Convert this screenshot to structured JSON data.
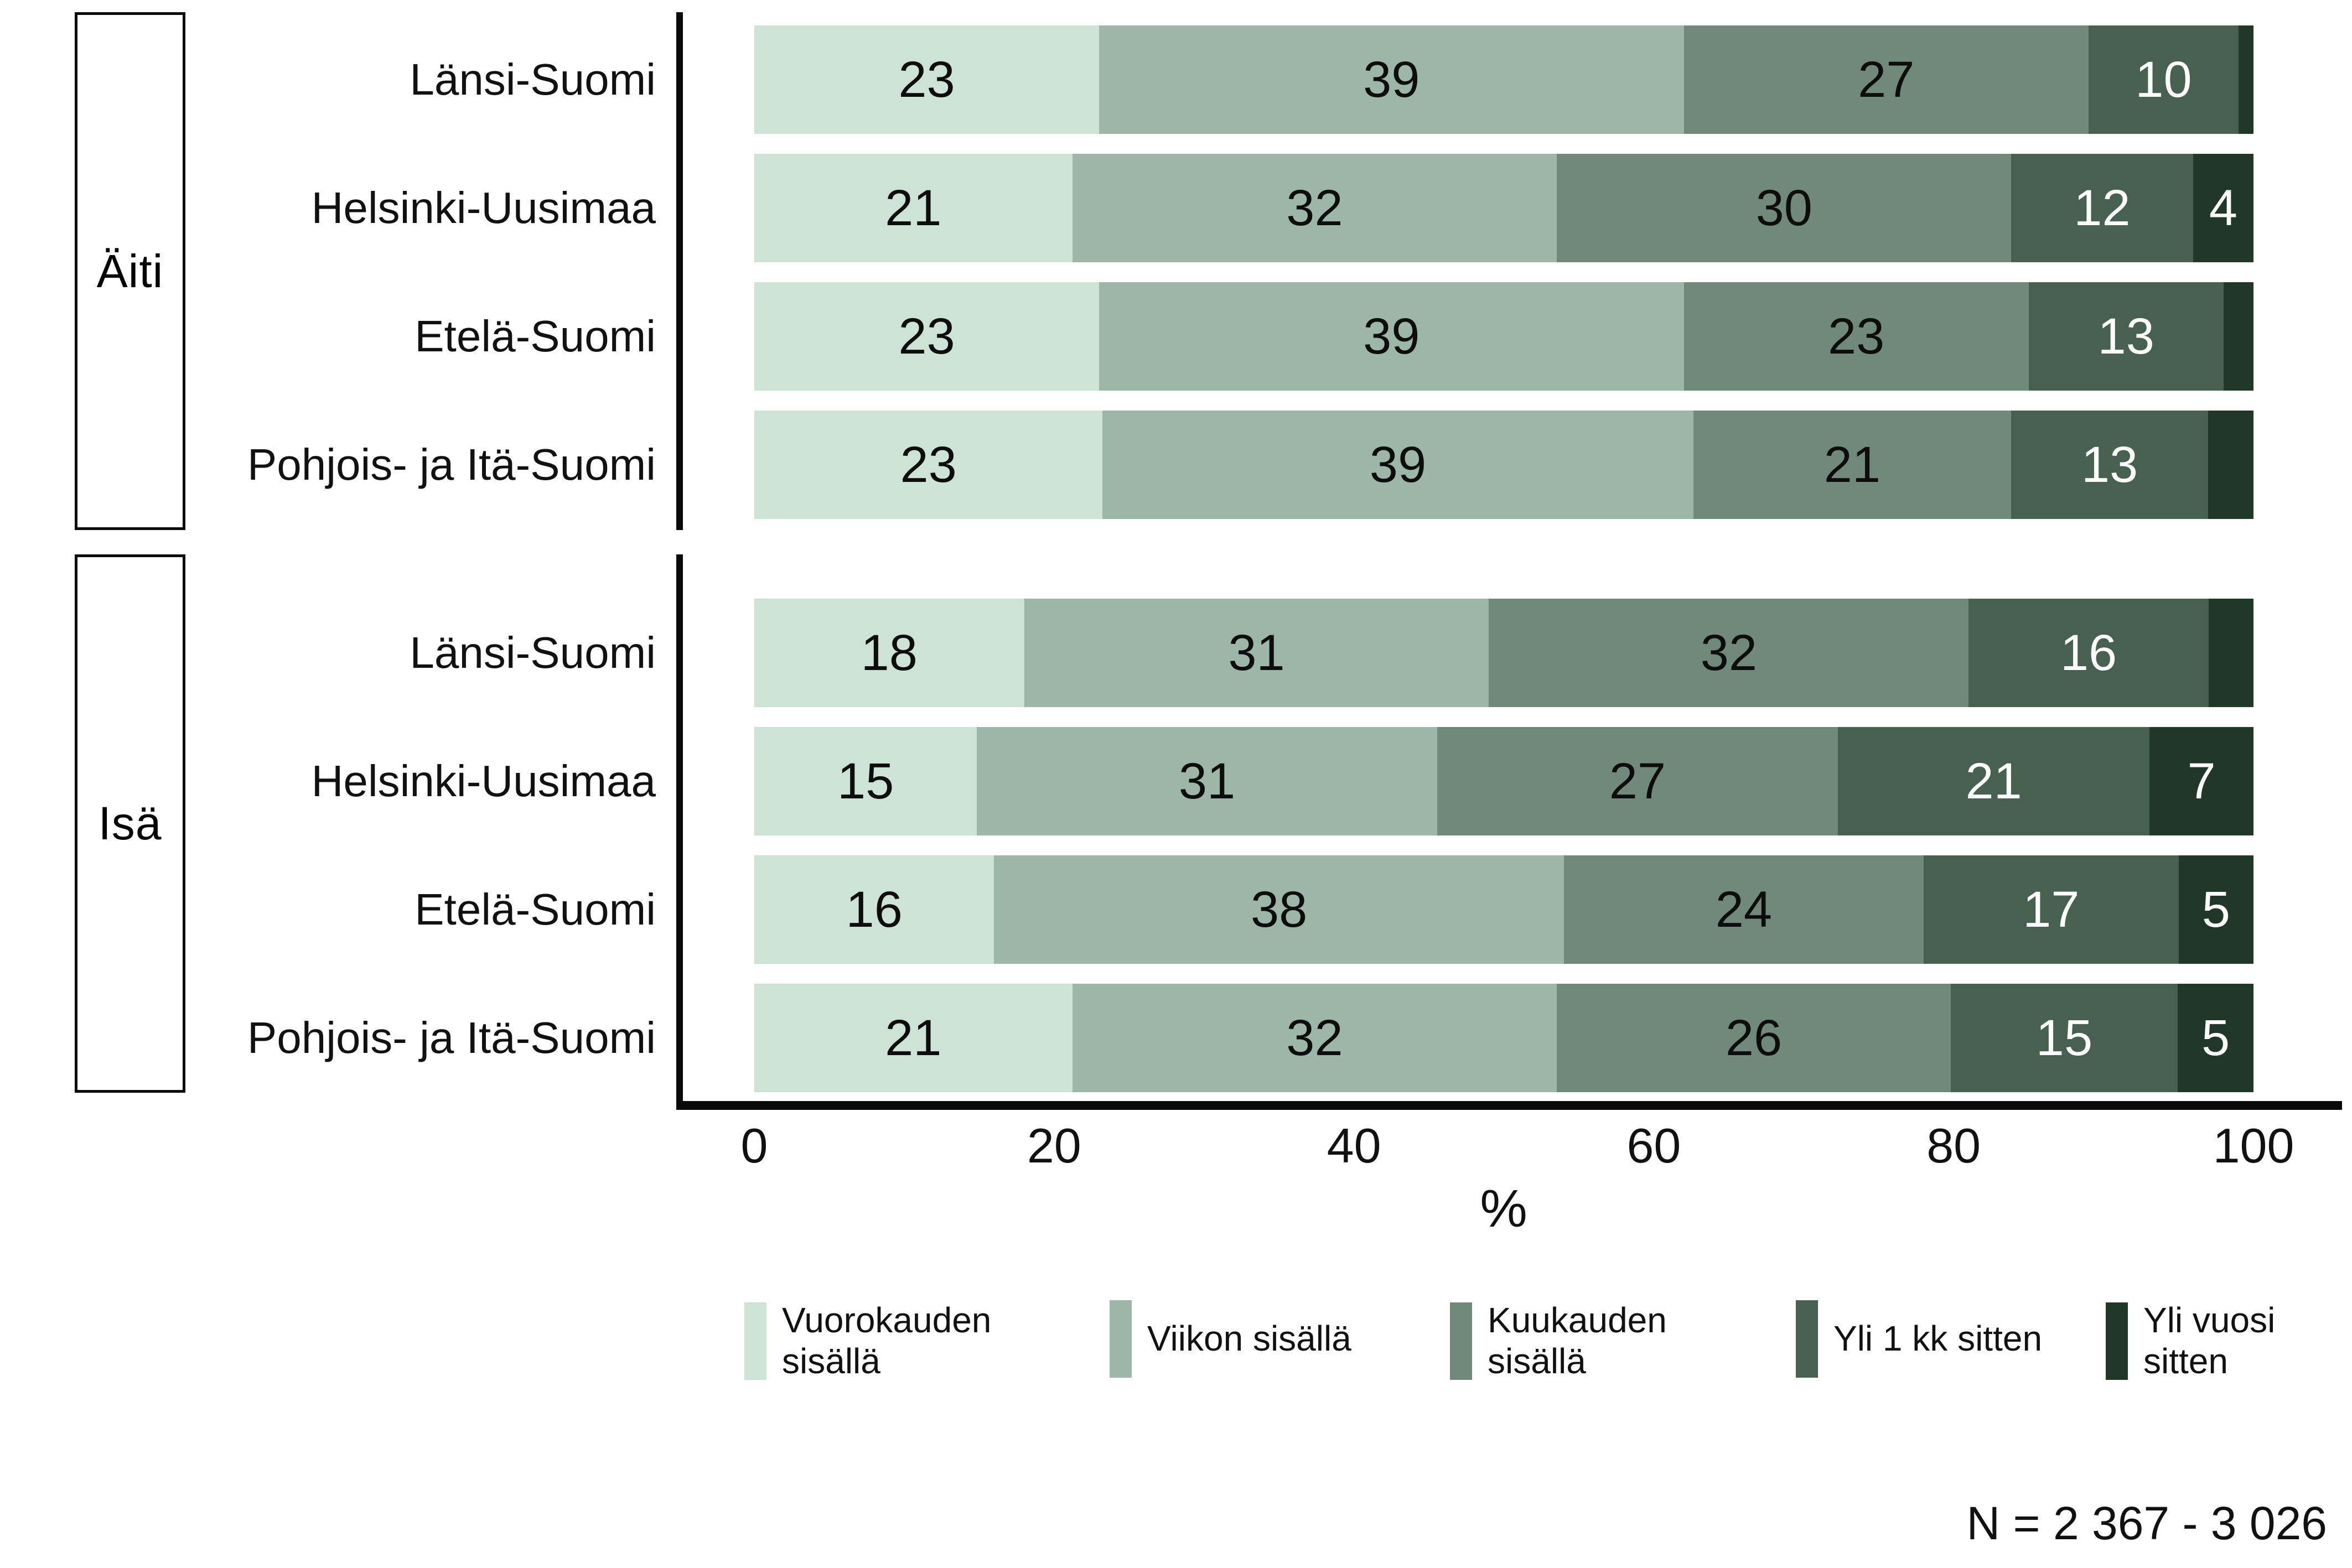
{
  "chart_data": {
    "type": "bar",
    "orientation": "horizontal",
    "stacked": true,
    "grid": false,
    "xlabel": "%",
    "xlim": [
      0,
      100
    ],
    "x_ticks": [
      "0",
      "20",
      "40",
      "60",
      "80",
      "100"
    ],
    "legend_position": "bottom",
    "legend": [
      {
        "label": "Vuorokauden\nsisällä",
        "color": "#cde3d6"
      },
      {
        "label": "Viikon sisällä",
        "color": "#9cb7a8"
      },
      {
        "label": "Kuukauden\nsisällä",
        "color": "#71897b"
      },
      {
        "label": "Yli 1 kk sitten",
        "color": "#47604f"
      },
      {
        "label": "Yli vuosi\nsitten",
        "color": "#213829"
      }
    ],
    "groups": [
      {
        "name": "Äiti",
        "rows": [
          {
            "label": "Länsi-Suomi",
            "values": [
              23,
              39,
              27,
              10,
              1
            ],
            "value_labels": [
              "23",
              "39",
              "27",
              "10",
              ""
            ]
          },
          {
            "label": "Helsinki-Uusimaa",
            "values": [
              21,
              32,
              30,
              12,
              4
            ],
            "value_labels": [
              "21",
              "32",
              "30",
              "12",
              "4"
            ]
          },
          {
            "label": "Etelä-Suomi",
            "values": [
              23,
              39,
              23,
              13,
              2
            ],
            "value_labels": [
              "23",
              "39",
              "23",
              "13",
              ""
            ]
          },
          {
            "label": "Pohjois- ja Itä-Suomi",
            "values": [
              23,
              39,
              21,
              13,
              3
            ],
            "value_labels": [
              "23",
              "39",
              "21",
              "13",
              ""
            ]
          }
        ]
      },
      {
        "name": "Isä",
        "rows": [
          {
            "label": "Länsi-Suomi",
            "values": [
              18,
              31,
              32,
              16,
              3
            ],
            "value_labels": [
              "18",
              "31",
              "32",
              "16",
              ""
            ]
          },
          {
            "label": "Helsinki-Uusimaa",
            "values": [
              15,
              31,
              27,
              21,
              7
            ],
            "value_labels": [
              "15",
              "31",
              "27",
              "21",
              "7"
            ]
          },
          {
            "label": "Etelä-Suomi",
            "values": [
              16,
              38,
              24,
              17,
              5
            ],
            "value_labels": [
              "16",
              "38",
              "24",
              "17",
              "5"
            ]
          },
          {
            "label": "Pohjois- ja Itä-Suomi",
            "values": [
              21,
              32,
              26,
              15,
              5
            ],
            "value_labels": [
              "21",
              "32",
              "26",
              "15",
              "5"
            ]
          }
        ]
      }
    ],
    "footnote": "N = 2 367 - 3 026",
    "text_color_on_light_segments": "#0d0d0d",
    "text_color_on_dark_segments": "#fcfdfc"
  }
}
